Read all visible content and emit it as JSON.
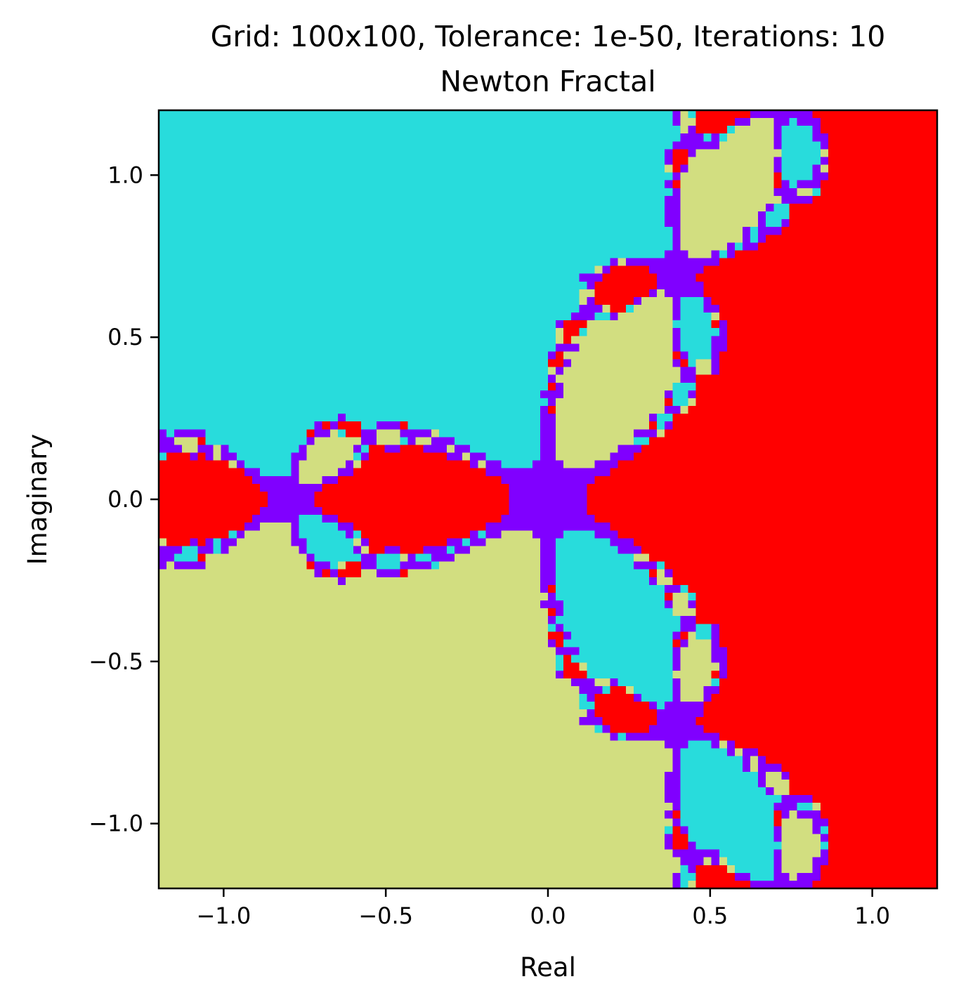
{
  "chart_data": {
    "type": "heatmap",
    "title": "Grid: 100x100, Tolerance: 1e-50, Iterations: 10",
    "subtitle": "Newton Fractal",
    "xlabel": "Real",
    "ylabel": "Imaginary",
    "xlim": [
      -1.2,
      1.2
    ],
    "ylim": [
      -1.2,
      1.2
    ],
    "grid": false,
    "x_ticks": [
      -1.0,
      -0.5,
      0.0,
      0.5,
      1.0
    ],
    "y_ticks": [
      -1.0,
      -0.5,
      0.0,
      0.5,
      1.0
    ],
    "x_tick_labels": [
      "−1.0",
      "−0.5",
      "0.0",
      "0.5",
      "1.0"
    ],
    "y_tick_labels": [
      "−1.0",
      "−0.5",
      "0.0",
      "0.5",
      "1.0"
    ],
    "grid_size": [
      100,
      100
    ],
    "tolerance": 1e-50,
    "iterations": 10,
    "colormap": "rainbow",
    "colors": {
      "root_real": "#ff0000",
      "root_upper": "#28dcdc",
      "root_lower": "#d2de80",
      "non_converged": "#8000ff"
    }
  }
}
